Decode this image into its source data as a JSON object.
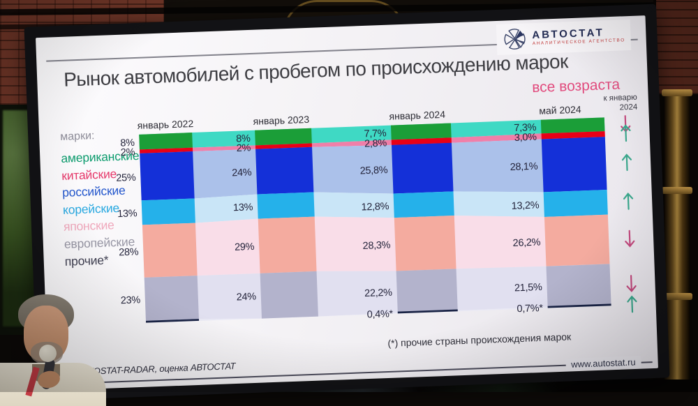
{
  "slide": {
    "title": "Рынок автомобилей с пробегом по происхождению марок",
    "subtitle": "все возраста",
    "footnote": "(*) прочие страны происхождения марок",
    "source": "AUTOSTAT-RADAR, оценка АВТОСТАТ",
    "website": "www.autostat.ru"
  },
  "logo": {
    "name": "АВТОСТАТ",
    "tagline": "АНАЛИТИЧЕСКОЕ АГЕНТСТВО",
    "text_color": "#232c54",
    "tagline_color": "#c23a3a"
  },
  "legend": {
    "label": "марки:",
    "items": [
      {
        "name": "американские",
        "color": "#0d9c6e"
      },
      {
        "name": "китайские",
        "color": "#e6386a"
      },
      {
        "name": "российские",
        "color": "#2356cc"
      },
      {
        "name": "корейские",
        "color": "#28a8e0"
      },
      {
        "name": "японские",
        "color": "#f0a8bc"
      },
      {
        "name": "европейские",
        "color": "#9796a4"
      },
      {
        "name": "прочие*",
        "color": "#3e3e50"
      }
    ]
  },
  "chart_data": {
    "type": "area",
    "stacked": true,
    "unit": "%",
    "ylim": [
      0,
      100
    ],
    "legend_position": "left",
    "grid": false,
    "x": [
      "январь 2022",
      "январь 2023",
      "январь 2024",
      "май 2024"
    ],
    "trend_header": "к январю 2024",
    "trend_colors": {
      "up": "#3aa78c",
      "down": "#c4497e"
    },
    "series": [
      {
        "name": "американские",
        "column_color": "#1b9e38",
        "area_color": "#3fd9c4",
        "values": [
          8,
          8,
          7.7,
          7.3
        ],
        "labels": [
          "8%",
          "8%",
          "7,7%",
          "7,3%"
        ],
        "trend": "down"
      },
      {
        "name": "китайские",
        "column_color": "#e80016",
        "area_color": "#f07fa9",
        "values": [
          2,
          2,
          2.8,
          3.0
        ],
        "labels": [
          "2%",
          "2%",
          "2,8%",
          "3,0%"
        ],
        "trend": "up"
      },
      {
        "name": "российские",
        "column_color": "#1430d8",
        "area_color": "#abc1ea",
        "values": [
          25,
          24,
          25.8,
          28.1
        ],
        "labels": [
          "25%",
          "24%",
          "25,8%",
          "28,1%"
        ],
        "trend": "up"
      },
      {
        "name": "корейские",
        "column_color": "#25b1ea",
        "area_color": "#c9e5f7",
        "values": [
          13,
          13,
          12.8,
          13.2
        ],
        "labels": [
          "13%",
          "13%",
          "12,8%",
          "13,2%"
        ],
        "trend": "up"
      },
      {
        "name": "японские",
        "column_color": "#f4ab9f",
        "area_color": "#f9dde8",
        "values": [
          28,
          29,
          28.3,
          26.2
        ],
        "labels": [
          "28%",
          "29%",
          "28,3%",
          "26,2%"
        ],
        "trend": "down"
      },
      {
        "name": "европейские",
        "column_color": "#b3b3cc",
        "area_color": "#e1e0f0",
        "values": [
          23,
          24,
          22.2,
          21.5
        ],
        "labels": [
          "23%",
          "24%",
          "22,2%",
          "21,5%"
        ],
        "trend": "down"
      },
      {
        "name": "прочие*",
        "column_color": "#1a2446",
        "area_color": "#e9e9f5",
        "values": [
          1,
          0,
          0.4,
          0.7
        ],
        "labels": [
          "",
          "",
          "0,4%*",
          "0,7%*"
        ],
        "trend": "up"
      }
    ]
  }
}
